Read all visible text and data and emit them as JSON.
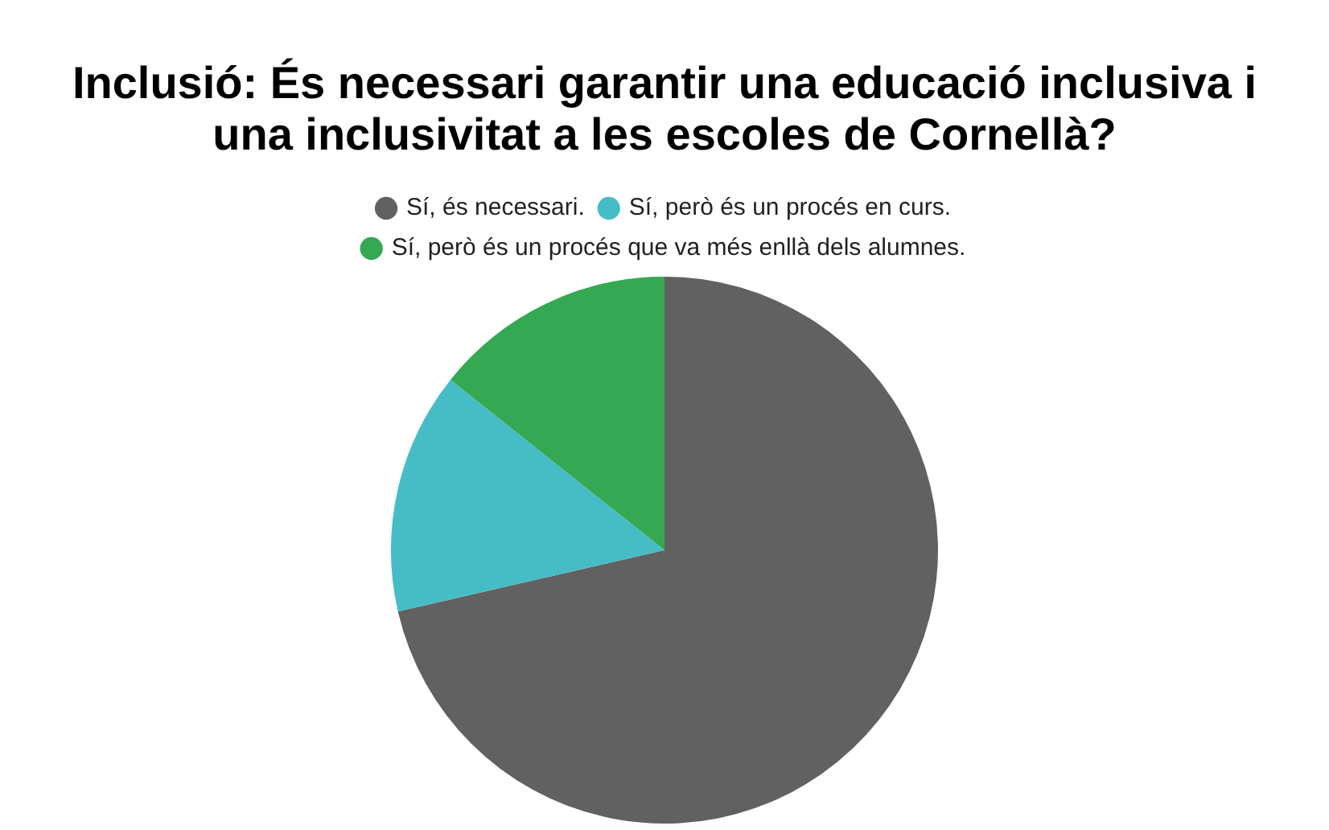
{
  "chart_data": {
    "type": "pie",
    "title": "Inclusió: És necessari garantir una educació inclusiva i una inclusivitat a les escoles de Cornellà?",
    "categories": [
      "Sí, és necessari.",
      "Sí, però és un procés en curs.",
      "Sí, però és un procés que va més enllà dels alumnes."
    ],
    "values": [
      71.4,
      14.3,
      14.3
    ],
    "colors": [
      "#616161",
      "#46bdc6",
      "#34a853"
    ],
    "legend": "top"
  }
}
